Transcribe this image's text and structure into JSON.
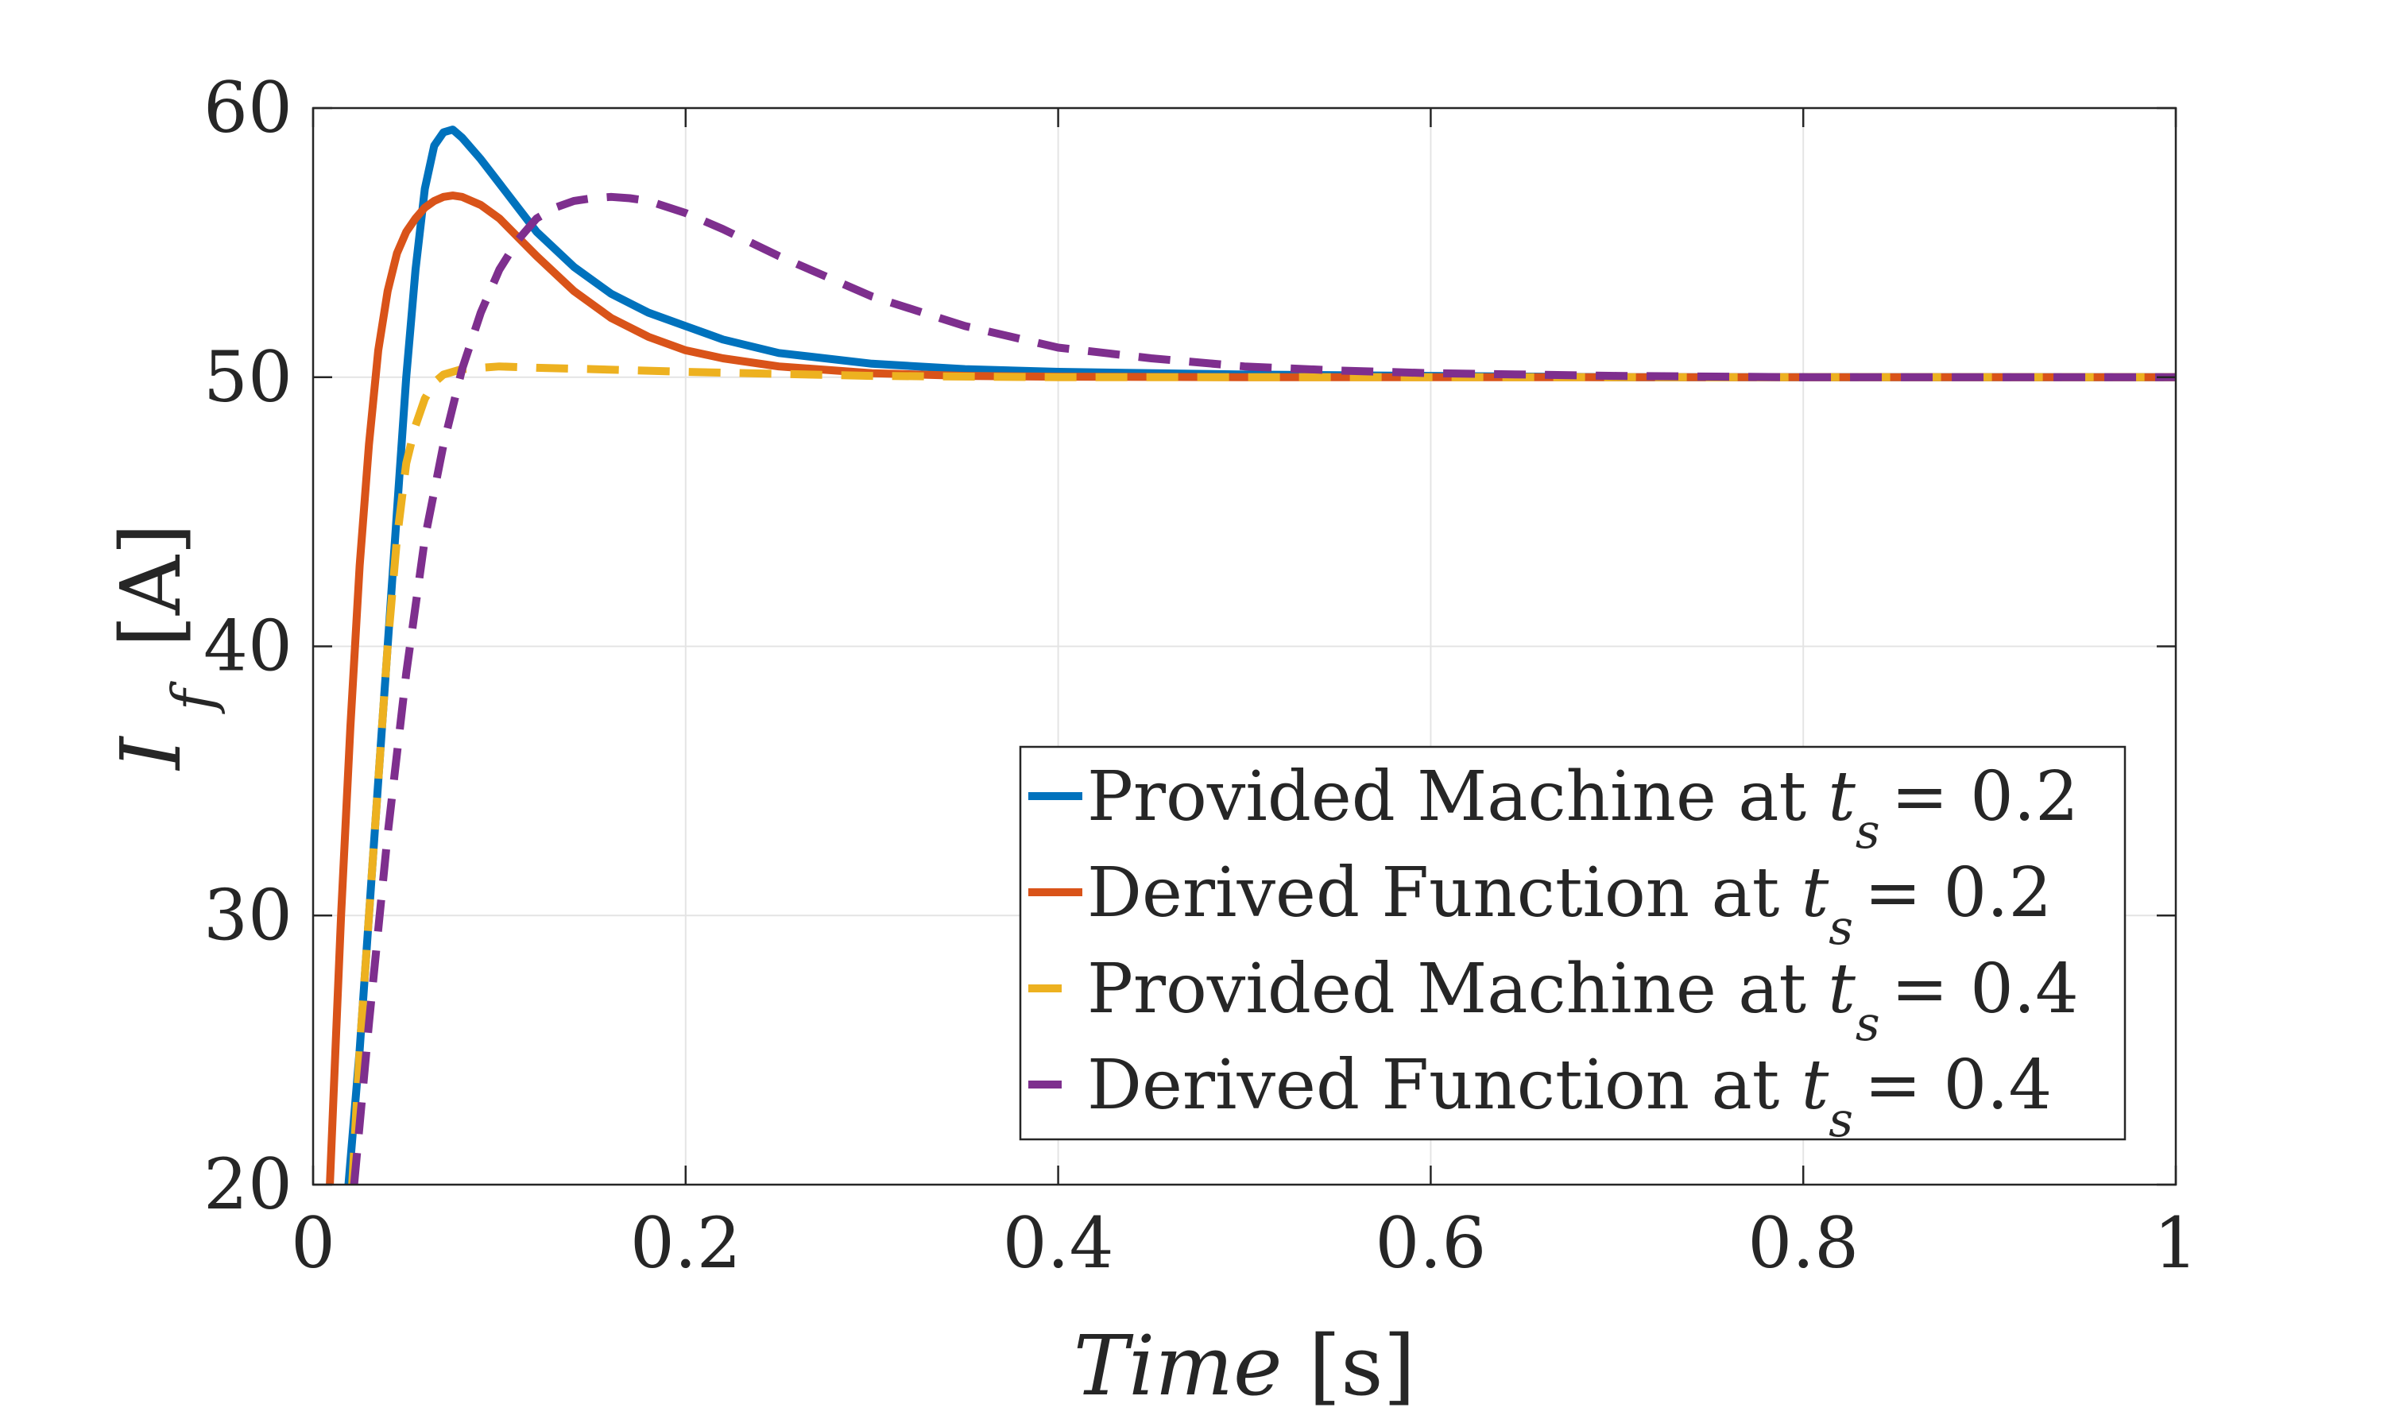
{
  "chart_data": {
    "type": "line",
    "title": "",
    "xlabel": {
      "var": "Time",
      "unit": "[s]"
    },
    "ylabel": {
      "var": "I",
      "sub": "f",
      "unit": "[A]"
    },
    "xlim": [
      0,
      1
    ],
    "ylim": [
      20,
      60
    ],
    "x_ticks": [
      0,
      0.2,
      0.4,
      0.6,
      0.8,
      1
    ],
    "x_tick_labels": [
      "0",
      "0.2",
      "0.4",
      "0.6",
      "0.8",
      "1"
    ],
    "y_ticks": [
      20,
      30,
      40,
      50,
      60
    ],
    "y_tick_labels": [
      "20",
      "30",
      "40",
      "50",
      "60"
    ],
    "grid": true,
    "legend_position": "bottom-right",
    "legend_suffix": "at",
    "series": [
      {
        "name": "Provided Machine",
        "ts_var": "t",
        "ts_sub": "s",
        "ts_value": "= 0.2",
        "color": "#0072BD",
        "dash": "solid",
        "x": [
          0.019,
          0.025,
          0.03,
          0.035,
          0.04,
          0.045,
          0.05,
          0.055,
          0.06,
          0.065,
          0.07,
          0.075,
          0.08,
          0.09,
          0.1,
          0.11,
          0.12,
          0.14,
          0.16,
          0.18,
          0.2,
          0.22,
          0.25,
          0.3,
          0.35,
          0.4,
          0.5,
          0.6,
          0.7,
          0.8,
          0.9,
          1.0
        ],
        "y": [
          20,
          25,
          30,
          35,
          40,
          45,
          50,
          54,
          57,
          58.6,
          59.1,
          59.2,
          58.9,
          58.1,
          57.2,
          56.3,
          55.4,
          54.1,
          53.1,
          52.4,
          51.9,
          51.4,
          50.9,
          50.5,
          50.3,
          50.2,
          50.1,
          50.05,
          50,
          50,
          50,
          50
        ]
      },
      {
        "name": "Derived Function",
        "ts_var": "t",
        "ts_sub": "s",
        "ts_value": "= 0.2",
        "color": "#D95319",
        "dash": "solid",
        "x": [
          0.009,
          0.012,
          0.015,
          0.02,
          0.025,
          0.03,
          0.035,
          0.04,
          0.045,
          0.05,
          0.055,
          0.06,
          0.065,
          0.07,
          0.075,
          0.08,
          0.09,
          0.1,
          0.11,
          0.12,
          0.14,
          0.16,
          0.18,
          0.2,
          0.22,
          0.25,
          0.3,
          0.35,
          0.4,
          0.5,
          0.6,
          0.7,
          0.8,
          0.9,
          1.0
        ],
        "y": [
          20,
          25,
          30,
          37,
          43,
          47.5,
          51,
          53.2,
          54.6,
          55.4,
          55.9,
          56.3,
          56.55,
          56.7,
          56.75,
          56.7,
          56.4,
          55.9,
          55.2,
          54.5,
          53.2,
          52.2,
          51.5,
          51,
          50.7,
          50.4,
          50.15,
          50.05,
          50.02,
          50,
          50,
          50,
          50,
          50,
          50
        ]
      },
      {
        "name": "Provided Machine",
        "ts_var": "t",
        "ts_sub": "s",
        "ts_value": "= 0.4",
        "color": "#EDB120",
        "dash": "dashed",
        "x": [
          0.021,
          0.025,
          0.03,
          0.035,
          0.04,
          0.045,
          0.05,
          0.055,
          0.06,
          0.065,
          0.07,
          0.08,
          0.1,
          0.12,
          0.15,
          0.2,
          0.3,
          0.4,
          0.5,
          0.6,
          0.7,
          0.8,
          0.9,
          1.0
        ],
        "y": [
          20,
          25,
          30,
          35,
          40,
          44,
          46.8,
          48.2,
          49.2,
          49.8,
          50.1,
          50.3,
          50.4,
          50.35,
          50.3,
          50.2,
          50.05,
          50,
          50,
          50,
          50,
          50,
          50,
          50
        ]
      },
      {
        "name": "Derived Function",
        "ts_var": "t",
        "ts_sub": "s",
        "ts_value": "= 0.4",
        "color": "#7E2F8E",
        "dash": "dashed",
        "x": [
          0.022,
          0.03,
          0.04,
          0.05,
          0.06,
          0.07,
          0.08,
          0.09,
          0.1,
          0.11,
          0.12,
          0.13,
          0.14,
          0.15,
          0.16,
          0.17,
          0.18,
          0.2,
          0.22,
          0.25,
          0.3,
          0.35,
          0.4,
          0.45,
          0.5,
          0.55,
          0.6,
          0.7,
          0.8,
          0.9,
          1.0
        ],
        "y": [
          20,
          26,
          33,
          39,
          44,
          47.5,
          50.3,
          52.4,
          54,
          55.1,
          55.9,
          56.3,
          56.55,
          56.65,
          56.7,
          56.65,
          56.55,
          56.1,
          55.5,
          54.5,
          53,
          51.9,
          51.1,
          50.7,
          50.4,
          50.25,
          50.15,
          50.05,
          50,
          50,
          50
        ]
      }
    ]
  }
}
